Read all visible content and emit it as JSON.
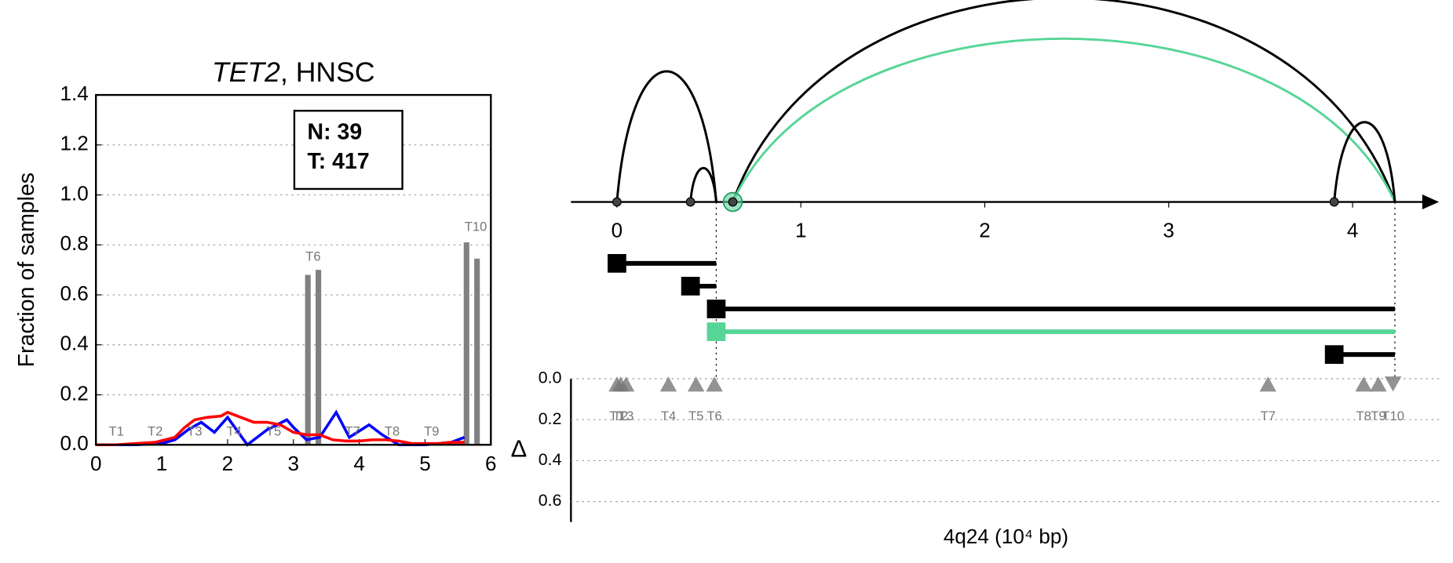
{
  "chart_data": [
    {
      "type": "combo",
      "title_parts": [
        "TET2",
        ", HNSC"
      ],
      "ylabel": "Fraction of samples",
      "box_lines": [
        "N: 39",
        "T: 417"
      ],
      "xlim": [
        0,
        6
      ],
      "ylim": [
        0,
        1.4
      ],
      "xticks": [
        0,
        1,
        2,
        3,
        4,
        5,
        6
      ],
      "yticks": [
        {
          "value": 0,
          "label": "0.0"
        },
        {
          "value": 0.2,
          "label": "0.2"
        },
        {
          "value": 0.4,
          "label": "0.4"
        },
        {
          "value": 0.6,
          "label": "0.6"
        },
        {
          "value": 0.8,
          "label": "0.8"
        },
        {
          "value": 1.0,
          "label": "1.0"
        },
        {
          "value": 1.2,
          "label": "1.2"
        },
        {
          "value": 1.4,
          "label": "1.4"
        }
      ],
      "grid": true,
      "bars": {
        "color": "#808080",
        "x": [
          3.22,
          3.38,
          5.63,
          5.79
        ],
        "values": [
          0.68,
          0.7,
          0.81,
          0.745
        ]
      },
      "lines": [
        {
          "color": "#0000ff",
          "x": [
            0,
            0.6,
            1.0,
            1.2,
            1.4,
            1.6,
            1.8,
            2.0,
            2.3,
            2.6,
            2.9,
            3.0,
            3.2,
            3.4,
            3.65,
            3.85,
            4.15,
            4.35,
            4.6,
            5.0,
            5.4,
            5.6
          ],
          "values": [
            0,
            0,
            0.005,
            0.02,
            0.06,
            0.09,
            0.05,
            0.11,
            0.0,
            0.06,
            0.1,
            0.07,
            0.02,
            0.03,
            0.13,
            0.03,
            0.08,
            0.04,
            0.0,
            0.0,
            0.01,
            0.03
          ]
        },
        {
          "color": "#ff0000",
          "x": [
            0,
            0.3,
            0.6,
            0.9,
            1.2,
            1.35,
            1.5,
            1.7,
            1.9,
            2.0,
            2.2,
            2.4,
            2.6,
            2.8,
            3.0,
            3.2,
            3.4,
            3.6,
            3.8,
            4.0,
            4.2,
            4.4,
            4.6,
            4.8,
            5.0,
            5.2,
            5.4,
            5.6
          ],
          "values": [
            0,
            0,
            0.005,
            0.01,
            0.03,
            0.07,
            0.1,
            0.11,
            0.115,
            0.13,
            0.11,
            0.09,
            0.09,
            0.08,
            0.05,
            0.04,
            0.04,
            0.02,
            0.015,
            0.015,
            0.02,
            0.02,
            0.015,
            0.005,
            0.005,
            0.005,
            0.01,
            0.01
          ]
        }
      ],
      "annotations": [
        {
          "text": "T1",
          "x": 0.31,
          "y": 0.05
        },
        {
          "text": "T2",
          "x": 0.9,
          "y": 0.05
        },
        {
          "text": "T3",
          "x": 1.5,
          "y": 0.05
        },
        {
          "text": "T4",
          "x": 2.1,
          "y": 0.05
        },
        {
          "text": "T5",
          "x": 2.7,
          "y": 0.05
        },
        {
          "text": "T6",
          "x": 3.3,
          "y": 0.75
        },
        {
          "text": "T7",
          "x": 3.9,
          "y": 0.05
        },
        {
          "text": "T8",
          "x": 4.5,
          "y": 0.05
        },
        {
          "text": "T9",
          "x": 5.1,
          "y": 0.05
        },
        {
          "text": "T10",
          "x": 5.77,
          "y": 0.87
        }
      ]
    },
    {
      "type": "arc",
      "xlabel": "4q24 (10⁴ bp)",
      "xlim": [
        -0.25,
        4.47
      ],
      "xticks": [
        0,
        1,
        2,
        3,
        4
      ],
      "nodes": [
        0,
        0.4,
        0.63,
        3.9
      ],
      "highlight": {
        "x": 0.63,
        "color": "#57d597"
      },
      "arcs": [
        {
          "start": 0,
          "end": 0.54,
          "color": "#000000"
        },
        {
          "start": 0.4,
          "end": 0.54,
          "color": "#000000"
        },
        {
          "start": 0.63,
          "end": 4.23,
          "color": "#000000"
        },
        {
          "start": 0.63,
          "end": 4.23,
          "color": "#57d597"
        },
        {
          "start": 3.9,
          "end": 4.23,
          "color": "#000000"
        }
      ],
      "guides": [
        0.54,
        4.23
      ],
      "transcripts": [
        {
          "start": 0,
          "end": 0.54,
          "color": "#000000"
        },
        {
          "start": 0.4,
          "end": 0.54,
          "color": "#000000"
        },
        {
          "start": 0.54,
          "end": 4.23,
          "color": "#000000"
        },
        {
          "start": 0.54,
          "end": 4.23,
          "color": "#57d597"
        },
        {
          "start": 3.9,
          "end": 4.23,
          "color": "#000000"
        }
      ],
      "ylabel": "Δ",
      "ylim": [
        0,
        0.7
      ],
      "yticks": [
        {
          "value": 0,
          "label": "0.0"
        },
        {
          "value": 0.2,
          "label": "0.2"
        },
        {
          "value": 0.4,
          "label": "0.4"
        },
        {
          "value": 0.6,
          "label": "0.6"
        }
      ],
      "markers": [
        {
          "label": "T1",
          "x": 0.0,
          "delta": 0.03,
          "direction": "up"
        },
        {
          "label": "T2",
          "x": 0.02,
          "delta": 0.03,
          "direction": "up"
        },
        {
          "label": "T3",
          "x": 0.05,
          "delta": 0.03,
          "direction": "up"
        },
        {
          "label": "T4",
          "x": 0.28,
          "delta": 0.03,
          "direction": "up"
        },
        {
          "label": "T5",
          "x": 0.43,
          "delta": 0.03,
          "direction": "up"
        },
        {
          "label": "T6",
          "x": 0.53,
          "delta": 0.03,
          "direction": "up"
        },
        {
          "label": "T7",
          "x": 3.54,
          "delta": 0.03,
          "direction": "up"
        },
        {
          "label": "T8",
          "x": 4.06,
          "delta": 0.03,
          "direction": "up"
        },
        {
          "label": "T9",
          "x": 4.14,
          "delta": 0.03,
          "direction": "up"
        },
        {
          "label": "T10",
          "x": 4.22,
          "delta": 0.03,
          "direction": "down"
        }
      ],
      "marker_color": "#777777"
    }
  ]
}
